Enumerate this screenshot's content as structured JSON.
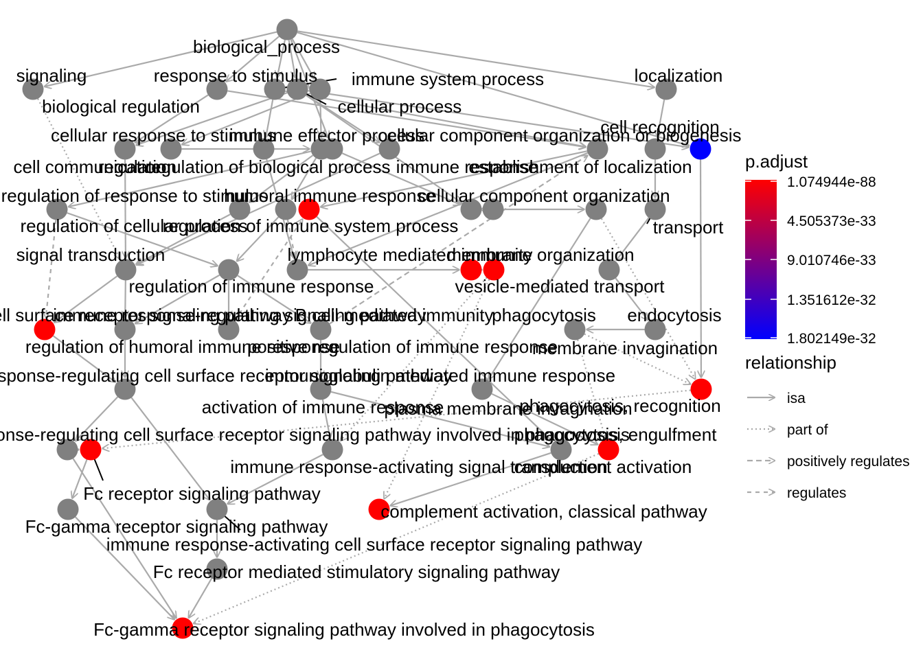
{
  "legend": {
    "color_title": "p.adjust",
    "color_ticks": [
      "1.074944e-88",
      "4.505373e-33",
      "9.010746e-33",
      "1.351612e-32",
      "1.802149e-32"
    ],
    "color_low": "#ff0000",
    "color_high": "#0000ff",
    "rel_title": "relationship",
    "rel_items": [
      {
        "label": "isa",
        "style": "solid"
      },
      {
        "label": "part of",
        "style": "dotted"
      },
      {
        "label": "positively regulates",
        "style": "dashed"
      },
      {
        "label": "regulates",
        "style": "dashed"
      }
    ]
  },
  "colors": {
    "edge": "#aaaaaa",
    "node_default": "#808080",
    "enriched": "#ff0000",
    "least_significant": "#0000ff"
  },
  "nodes": [
    {
      "id": "bp",
      "label": "biological_process",
      "color": "gray"
    },
    {
      "id": "signaling",
      "label": "signaling",
      "color": "gray"
    },
    {
      "id": "resp_stim",
      "label": "response to stimulus",
      "color": "gray"
    },
    {
      "id": "immune_sys",
      "label": "immune system process",
      "color": "gray"
    },
    {
      "id": "cellular_proc",
      "label": "cellular process",
      "color": "gray"
    },
    {
      "id": "localization",
      "label": "localization",
      "color": "gray"
    },
    {
      "id": "bio_reg",
      "label": "biological regulation",
      "color": "gray"
    },
    {
      "id": "cell_recog",
      "label": "cell recognition",
      "color": "blue"
    },
    {
      "id": "cell_resp",
      "label": "cellular response to stimulus",
      "color": "gray"
    },
    {
      "id": "regulation",
      "label": "regulation",
      "color": "gray"
    },
    {
      "id": "immune_eff",
      "label": "immune effector process",
      "color": "gray"
    },
    {
      "id": "cc_org_bio",
      "label": "cellular component organization or biogenesis",
      "color": "gray"
    },
    {
      "id": "cell_comm",
      "label": "cell communication",
      "color": "gray"
    },
    {
      "id": "reg_bio_proc",
      "label": "regulation of biological process",
      "color": "gray"
    },
    {
      "id": "immune_resp",
      "label": "immune response",
      "color": "gray"
    },
    {
      "id": "estab_loc",
      "label": "establishment of localization",
      "color": "gray"
    },
    {
      "id": "reg_resp_stim",
      "label": "regulation of response to stimulus",
      "color": "gray"
    },
    {
      "id": "humoral",
      "label": "humoral immune response",
      "color": "red"
    },
    {
      "id": "cc_org",
      "label": "cellular component organization",
      "color": "gray"
    },
    {
      "id": "reg_cell_proc",
      "label": "regulation of cellular process",
      "color": "gray"
    },
    {
      "id": "reg_immune_sys",
      "label": "regulation of immune system process",
      "color": "gray"
    },
    {
      "id": "transport",
      "label": "transport",
      "color": "gray"
    },
    {
      "id": "signal_trans",
      "label": "signal transduction",
      "color": "gray"
    },
    {
      "id": "lymph_med",
      "label": "lymphocyte mediated immunity",
      "color": "gray"
    },
    {
      "id": "membrane_org",
      "label": "membrane organization",
      "color": "gray"
    },
    {
      "id": "reg_immune_resp",
      "label": "regulation of immune response",
      "color": "gray"
    },
    {
      "id": "vesicle_tr",
      "label": "vesicle-mediated transport",
      "color": "gray"
    },
    {
      "id": "csr_sig",
      "label": "cell surface receptor signaling pathway",
      "color": "red"
    },
    {
      "id": "ir_reg_sig",
      "label": "immune response-regulating signaling pathway",
      "color": "gray"
    },
    {
      "id": "b_cell_imm",
      "label": "B cell mediated immunity",
      "color": "red"
    },
    {
      "id": "phagocytosis",
      "label": "phagocytosis",
      "color": "gray"
    },
    {
      "id": "endocytosis",
      "label": "endocytosis",
      "color": "gray"
    },
    {
      "id": "reg_humoral",
      "label": "regulation of humoral immune response",
      "color": "gray"
    },
    {
      "id": "pos_reg_resp",
      "label": "positive regulation of immune response",
      "color": "gray"
    },
    {
      "id": "membrane_inv",
      "label": "membrane invagination",
      "color": "gray"
    },
    {
      "id": "ir_reg_csr",
      "label": "immune response-regulating cell surface receptor signaling pathway",
      "color": "gray"
    },
    {
      "id": "ig_med",
      "label": "immunoglobulin mediated immune response",
      "color": "red"
    },
    {
      "id": "act_immune",
      "label": "activation of immune response",
      "color": "gray"
    },
    {
      "id": "pm_inv",
      "label": "plasma membrane invagination",
      "color": "gray"
    },
    {
      "id": "phago_recog",
      "label": "phagocytosis, recognition",
      "color": "red"
    },
    {
      "id": "ir_reg_csr_phago",
      "label": "immune response-regulating cell surface receptor signaling pathway involved in phagocytosis",
      "color": "gray"
    },
    {
      "id": "phago_engulf",
      "label": "phagocytosis, engulfment",
      "color": "red"
    },
    {
      "id": "ir_act_sig",
      "label": "immune response-activating signal transduction",
      "color": "gray"
    },
    {
      "id": "complement_act",
      "label": "complement activation",
      "color": "gray"
    },
    {
      "id": "fc_sig",
      "label": "Fc receptor signaling pathway",
      "color": "red"
    },
    {
      "id": "complement_classical",
      "label": "complement activation, classical pathway",
      "color": "red"
    },
    {
      "id": "fcg_sig",
      "label": "Fc-gamma receptor signaling pathway",
      "color": "gray"
    },
    {
      "id": "ir_act_csr",
      "label": "immune response-activating cell surface receptor signaling pathway",
      "color": "gray"
    },
    {
      "id": "fc_stim",
      "label": "Fc receptor mediated stimulatory signaling pathway",
      "color": "gray"
    },
    {
      "id": "fcg_phago",
      "label": "Fc-gamma receptor signaling pathway involved in phagocytosis",
      "color": "red"
    }
  ],
  "edges": [
    {
      "from": "bp",
      "to": "signaling",
      "type": "isa"
    },
    {
      "from": "bp",
      "to": "resp_stim",
      "type": "isa"
    },
    {
      "from": "bp",
      "to": "immune_sys",
      "type": "isa"
    },
    {
      "from": "bp",
      "to": "cellular_proc",
      "type": "isa"
    },
    {
      "from": "bp",
      "to": "localization",
      "type": "isa"
    },
    {
      "from": "bp",
      "to": "bio_reg",
      "type": "isa"
    },
    {
      "from": "bp",
      "to": "cell_recog",
      "type": "isa"
    },
    {
      "from": "bp",
      "to": "cc_org_bio",
      "type": "isa"
    },
    {
      "from": "signaling",
      "to": "signal_trans",
      "type": "part of"
    },
    {
      "from": "bio_reg",
      "to": "regulation",
      "type": "isa"
    },
    {
      "from": "bio_reg",
      "to": "reg_bio_proc",
      "type": "isa"
    },
    {
      "from": "resp_stim",
      "to": "cell_resp",
      "type": "isa"
    },
    {
      "from": "resp_stim",
      "to": "immune_resp",
      "type": "isa"
    },
    {
      "from": "cellular_proc",
      "to": "cell_resp",
      "type": "isa"
    },
    {
      "from": "cellular_proc",
      "to": "cell_comm",
      "type": "isa"
    },
    {
      "from": "cellular_proc",
      "to": "cc_org",
      "type": "isa"
    },
    {
      "from": "cellular_proc",
      "to": "cell_recog",
      "type": "isa"
    },
    {
      "from": "immune_sys",
      "to": "immune_eff",
      "type": "isa"
    },
    {
      "from": "immune_sys",
      "to": "immune_resp",
      "type": "isa"
    },
    {
      "from": "localization",
      "to": "estab_loc",
      "type": "isa"
    },
    {
      "from": "cc_org_bio",
      "to": "cc_org",
      "type": "isa"
    },
    {
      "from": "regulation",
      "to": "reg_bio_proc",
      "type": "isa"
    },
    {
      "from": "reg_bio_proc",
      "to": "reg_resp_stim",
      "type": "isa"
    },
    {
      "from": "reg_bio_proc",
      "to": "reg_cell_proc",
      "type": "isa"
    },
    {
      "from": "reg_bio_proc",
      "to": "reg_immune_sys",
      "type": "isa"
    },
    {
      "from": "reg_resp_stim",
      "to": "reg_immune_resp",
      "type": "isa"
    },
    {
      "from": "reg_immune_sys",
      "to": "reg_immune_resp",
      "type": "isa"
    },
    {
      "from": "cell_comm",
      "to": "signal_trans",
      "type": "isa"
    },
    {
      "from": "cell_resp",
      "to": "signal_trans",
      "type": "isa"
    },
    {
      "from": "reg_cell_proc",
      "to": "signal_trans",
      "type": "isa"
    },
    {
      "from": "immune_eff",
      "to": "lymph_med",
      "type": "isa"
    },
    {
      "from": "immune_resp",
      "to": "humoral",
      "type": "isa"
    },
    {
      "from": "immune_resp",
      "to": "lymph_med",
      "type": "isa"
    },
    {
      "from": "estab_loc",
      "to": "transport",
      "type": "isa"
    },
    {
      "from": "transport",
      "to": "vesicle_tr",
      "type": "isa"
    },
    {
      "from": "cc_org",
      "to": "membrane_org",
      "type": "isa"
    },
    {
      "from": "membrane_org",
      "to": "membrane_inv",
      "type": "isa"
    },
    {
      "from": "vesicle_tr",
      "to": "endocytosis",
      "type": "isa"
    },
    {
      "from": "endocytosis",
      "to": "phagocytosis",
      "type": "isa"
    },
    {
      "from": "signal_trans",
      "to": "csr_sig",
      "type": "isa"
    },
    {
      "from": "signal_trans",
      "to": "ir_reg_sig",
      "type": "isa"
    },
    {
      "from": "reg_immune_resp",
      "to": "ir_reg_sig",
      "type": "isa"
    },
    {
      "from": "reg_immune_resp",
      "to": "pos_reg_resp",
      "type": "isa"
    },
    {
      "from": "reg_immune_resp",
      "to": "reg_humoral",
      "type": "isa"
    },
    {
      "from": "lymph_med",
      "to": "b_cell_imm",
      "type": "isa"
    },
    {
      "from": "humoral",
      "to": "complement_act",
      "type": "isa"
    },
    {
      "from": "b_cell_imm",
      "to": "ig_med",
      "type": "isa"
    },
    {
      "from": "ir_reg_sig",
      "to": "ir_reg_csr",
      "type": "isa"
    },
    {
      "from": "csr_sig",
      "to": "ir_reg_csr",
      "type": "isa"
    },
    {
      "from": "pos_reg_resp",
      "to": "act_immune",
      "type": "isa"
    },
    {
      "from": "phagocytosis",
      "to": "phago_recog",
      "type": "part of"
    },
    {
      "from": "phagocytosis",
      "to": "phago_engulf",
      "type": "part of"
    },
    {
      "from": "membrane_inv",
      "to": "pm_inv",
      "type": "isa"
    },
    {
      "from": "pm_inv",
      "to": "phago_engulf",
      "type": "isa"
    },
    {
      "from": "cell_recog",
      "to": "phago_recog",
      "type": "isa"
    },
    {
      "from": "ir_reg_csr",
      "to": "ir_reg_csr_phago",
      "type": "isa"
    },
    {
      "from": "ir_reg_csr",
      "to": "ir_act_csr",
      "type": "isa"
    },
    {
      "from": "act_immune",
      "to": "ir_act_sig",
      "type": "isa"
    },
    {
      "from": "act_immune",
      "to": "complement_act",
      "type": "isa"
    },
    {
      "from": "ig_med",
      "to": "complement_classical",
      "type": "part of"
    },
    {
      "from": "complement_act",
      "to": "complement_classical",
      "type": "isa"
    },
    {
      "from": "ir_reg_csr_phago",
      "to": "fc_sig",
      "type": "isa"
    },
    {
      "from": "fc_sig",
      "to": "fcg_sig",
      "type": "isa"
    },
    {
      "from": "ir_act_sig",
      "to": "ir_act_csr",
      "type": "isa"
    },
    {
      "from": "ir_act_csr",
      "to": "fc_stim",
      "type": "isa"
    },
    {
      "from": "fcg_sig",
      "to": "fcg_phago",
      "type": "isa"
    },
    {
      "from": "fc_stim",
      "to": "fcg_phago",
      "type": "isa"
    },
    {
      "from": "ir_reg_csr_phago",
      "to": "fcg_phago",
      "type": "isa"
    },
    {
      "from": "reg_resp_stim",
      "to": "csr_sig",
      "type": "regulates"
    },
    {
      "from": "reg_immune_sys",
      "to": "lymph_med",
      "type": "regulates"
    },
    {
      "from": "reg_humoral",
      "to": "humoral",
      "type": "regulates"
    },
    {
      "from": "pos_reg_resp",
      "to": "immune_resp",
      "type": "positively regulates"
    },
    {
      "from": "phago_recog",
      "to": "fc_sig",
      "type": "part of"
    },
    {
      "from": "phago_engulf",
      "to": "fcg_phago",
      "type": "part of"
    },
    {
      "from": "membrane_inv",
      "to": "phago_recog",
      "type": "part of"
    },
    {
      "from": "ig_med",
      "to": "ir_act_sig",
      "type": "part of"
    }
  ]
}
